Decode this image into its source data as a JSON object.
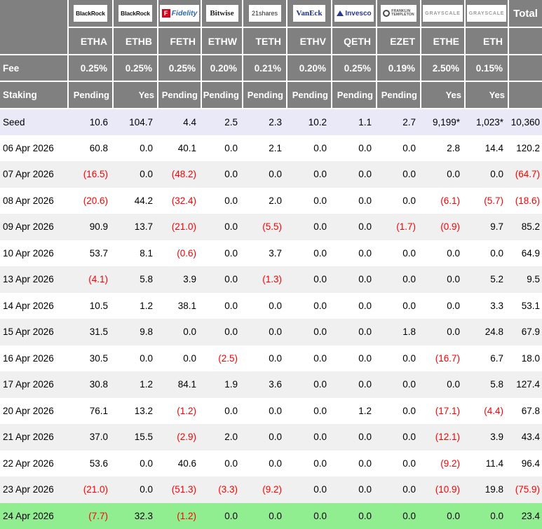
{
  "colors": {
    "header_bg": "#808080",
    "header_text": "#ffffff",
    "seed_row_bg": "#e9e9f7",
    "alt_row_bg": "#f0f0f0",
    "white_row_bg": "#ffffff",
    "green_row_bg": "#90ee90",
    "negative_text": "#ff0000",
    "positive_text": "#000000"
  },
  "chart_data": {
    "type": "table",
    "total_label": "Total",
    "fee_row": {
      "label": "Fee",
      "values": [
        "0.25%",
        "0.25%",
        "0.25%",
        "0.20%",
        "0.21%",
        "0.20%",
        "0.25%",
        "0.19%",
        "2.50%",
        "0.15%"
      ]
    },
    "staking_row": {
      "label": "Staking",
      "values": [
        "Pending",
        "Yes",
        "Pending",
        "Pending",
        "Pending",
        "Pending",
        "Pending",
        "Pending",
        "Yes",
        "Yes"
      ]
    },
    "issuers": [
      {
        "logo": "blackrock-logo",
        "label": "BlackRock",
        "ticker": "ETHA",
        "fee": "0.25%",
        "staking": "Pending"
      },
      {
        "logo": "blackrock-logo",
        "label": "BlackRock",
        "ticker": "ETHB",
        "fee": "0.25%",
        "staking": "Yes"
      },
      {
        "logo": "fidelity-logo",
        "label": "Fidelity",
        "ticker": "FETH",
        "fee": "0.25%",
        "staking": "Pending"
      },
      {
        "logo": "bitwise-logo",
        "label": "Bitwise",
        "ticker": "ETHW",
        "fee": "0.20%",
        "staking": "Pending"
      },
      {
        "logo": "21shares-logo",
        "label": "21shares",
        "ticker": "TETH",
        "fee": "0.21%",
        "staking": "Pending"
      },
      {
        "logo": "vaneck-logo",
        "label": "VanEck",
        "ticker": "ETHV",
        "fee": "0.20%",
        "staking": "Pending"
      },
      {
        "logo": "invesco-logo",
        "label": "Invesco",
        "ticker": "QETH",
        "fee": "0.25%",
        "staking": "Pending"
      },
      {
        "logo": "franklin-templeton-logo",
        "label": "Franklin Templeton",
        "ticker": "EZET",
        "fee": "0.19%",
        "staking": "Pending"
      },
      {
        "logo": "grayscale-logo",
        "label": "Grayscale",
        "ticker": "ETHE",
        "fee": "2.50%",
        "staking": "Yes"
      },
      {
        "logo": "grayscale-logo",
        "label": "Grayscale",
        "ticker": "ETH",
        "fee": "0.15%",
        "staking": "Yes"
      }
    ],
    "columns": [
      "ETHA",
      "ETHB",
      "FETH",
      "ETHW",
      "TETH",
      "ETHV",
      "QETH",
      "EZET",
      "ETHE",
      "ETH",
      "Total"
    ],
    "rows": [
      {
        "label": "Seed",
        "highlight": "seed",
        "values": [
          "10.6",
          "104.7",
          "4.4",
          "2.5",
          "2.3",
          "10.2",
          "1.1",
          "2.7",
          "9,199*",
          "1,023*",
          "10,360"
        ]
      },
      {
        "label": "06 Apr 2026",
        "values": [
          "60.8",
          "0.0",
          "40.1",
          "0.0",
          "2.1",
          "0.0",
          "0.0",
          "0.0",
          "2.8",
          "14.4",
          "120.2"
        ]
      },
      {
        "label": "07 Apr 2026",
        "values": [
          "(16.5)",
          "0.0",
          "(48.2)",
          "0.0",
          "0.0",
          "0.0",
          "0.0",
          "0.0",
          "0.0",
          "0.0",
          "(64.7)"
        ]
      },
      {
        "label": "08 Apr 2026",
        "values": [
          "(20.6)",
          "44.2",
          "(32.4)",
          "0.0",
          "2.0",
          "0.0",
          "0.0",
          "0.0",
          "(6.1)",
          "(5.7)",
          "(18.6)"
        ]
      },
      {
        "label": "09 Apr 2026",
        "values": [
          "90.9",
          "13.7",
          "(21.0)",
          "0.0",
          "(5.5)",
          "0.0",
          "0.0",
          "(1.7)",
          "(0.9)",
          "9.7",
          "85.2"
        ]
      },
      {
        "label": "10 Apr 2026",
        "values": [
          "53.7",
          "8.1",
          "(0.6)",
          "0.0",
          "3.7",
          "0.0",
          "0.0",
          "0.0",
          "0.0",
          "0.0",
          "64.9"
        ]
      },
      {
        "label": "13 Apr 2026",
        "values": [
          "(4.1)",
          "5.8",
          "3.9",
          "0.0",
          "(1.3)",
          "0.0",
          "0.0",
          "0.0",
          "0.0",
          "5.2",
          "9.5"
        ]
      },
      {
        "label": "14 Apr 2026",
        "values": [
          "10.5",
          "1.2",
          "38.1",
          "0.0",
          "0.0",
          "0.0",
          "0.0",
          "0.0",
          "0.0",
          "3.3",
          "53.1"
        ]
      },
      {
        "label": "15 Apr 2026",
        "values": [
          "31.5",
          "9.8",
          "0.0",
          "0.0",
          "0.0",
          "0.0",
          "0.0",
          "1.8",
          "0.0",
          "24.8",
          "67.9"
        ]
      },
      {
        "label": "16 Apr 2026",
        "values": [
          "30.5",
          "0.0",
          "0.0",
          "(2.5)",
          "0.0",
          "0.0",
          "0.0",
          "0.0",
          "(16.7)",
          "6.7",
          "18.0"
        ]
      },
      {
        "label": "17 Apr 2026",
        "values": [
          "30.8",
          "1.2",
          "84.1",
          "1.9",
          "3.6",
          "0.0",
          "0.0",
          "0.0",
          "0.0",
          "5.8",
          "127.4"
        ]
      },
      {
        "label": "20 Apr 2026",
        "values": [
          "76.1",
          "13.2",
          "(1.2)",
          "0.0",
          "0.0",
          "0.0",
          "1.2",
          "0.0",
          "(17.1)",
          "(4.4)",
          "67.8"
        ]
      },
      {
        "label": "21 Apr 2026",
        "values": [
          "37.0",
          "15.5",
          "(2.9)",
          "2.0",
          "0.0",
          "0.0",
          "0.0",
          "0.0",
          "(12.1)",
          "3.9",
          "43.4"
        ]
      },
      {
        "label": "22 Apr 2026",
        "values": [
          "53.6",
          "0.0",
          "40.6",
          "0.0",
          "0.0",
          "0.0",
          "0.0",
          "0.0",
          "(9.2)",
          "11.4",
          "96.4"
        ]
      },
      {
        "label": "23 Apr 2026",
        "values": [
          "(21.0)",
          "0.0",
          "(51.3)",
          "(3.3)",
          "(9.2)",
          "0.0",
          "0.0",
          "0.0",
          "(10.9)",
          "19.8",
          "(75.9)"
        ]
      },
      {
        "label": "24 Apr 2026",
        "highlight": "green",
        "values": [
          "(7.7)",
          "32.3",
          "(1.2)",
          "0.0",
          "0.0",
          "0.0",
          "0.0",
          "0.0",
          "0.0",
          "0.0",
          "23.4"
        ]
      }
    ]
  }
}
